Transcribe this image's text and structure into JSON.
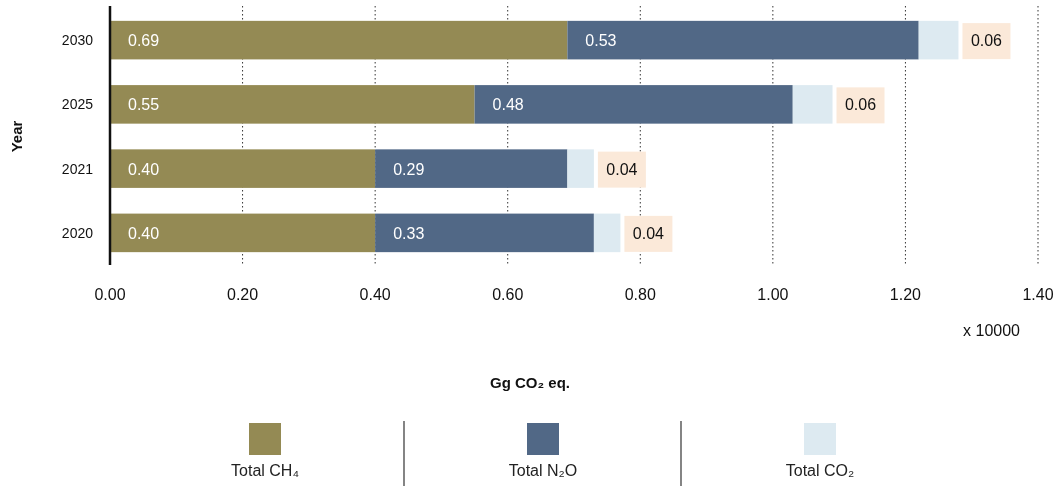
{
  "chart_data": {
    "type": "bar",
    "orientation": "horizontal",
    "stacked": true,
    "categories": [
      "2030",
      "2025",
      "2021",
      "2020"
    ],
    "series": [
      {
        "name": "Total CH₄",
        "color": "#948a54",
        "values": [
          0.69,
          0.55,
          0.4,
          0.4
        ],
        "value_labels": [
          "0.69",
          "0.55",
          "0.40",
          "0.40"
        ]
      },
      {
        "name": "Total N₂O",
        "color": "#516886",
        "values": [
          0.53,
          0.48,
          0.29,
          0.33
        ],
        "value_labels": [
          "0.53",
          "0.48",
          "0.29",
          "0.33"
        ]
      },
      {
        "name": "Total CO₂",
        "color": "#ddeaf1",
        "values": [
          0.06,
          0.06,
          0.04,
          0.04
        ],
        "value_labels": [
          "0.06",
          "0.06",
          "0.04",
          "0.04"
        ]
      }
    ],
    "xlim": [
      0,
      1.4
    ],
    "xticks": [
      {
        "value": 0,
        "label": "0.00"
      },
      {
        "value": 0.2,
        "label": "0.20"
      },
      {
        "value": 0.4,
        "label": "0.40"
      },
      {
        "value": 0.6,
        "label": "0.60"
      },
      {
        "value": 0.8,
        "label": "0.80"
      },
      {
        "value": 1,
        "label": "1.00"
      },
      {
        "value": 1.2,
        "label": "1.20"
      },
      {
        "value": 1.4,
        "label": "1.40"
      }
    ],
    "xlabel": "Gg CO₂ eq.",
    "ylabel": "Year",
    "annotations": [
      "x 10000"
    ],
    "grid": "x",
    "legend": "bottom"
  }
}
